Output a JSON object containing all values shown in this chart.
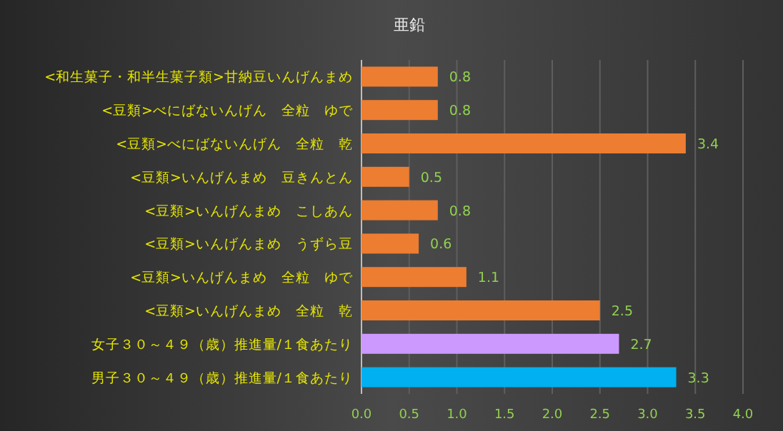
{
  "chart_data": {
    "type": "bar",
    "orientation": "horizontal",
    "title": "亜鉛",
    "categories": [
      "<和生菓子・和半生菓子類>甘納豆いんげんまめ",
      "<豆類>べにばないんげん　全粒　ゆで",
      "<豆類>べにばないんげん　全粒　乾",
      "<豆類>いんげんまめ　豆きんとん",
      "<豆類>いんげんまめ　こしあん",
      "<豆類>いんげんまめ　うずら豆",
      "<豆類>いんげんまめ　全粒　ゆで",
      "<豆類>いんげんまめ　全粒　乾",
      "女子３０～４９（歳）推進量/１食あたり",
      "男子３０～４９（歳）推進量/１食あたり"
    ],
    "values": [
      0.8,
      0.8,
      3.4,
      0.5,
      0.8,
      0.6,
      1.1,
      2.5,
      2.7,
      3.3
    ],
    "colors": [
      "#ed7d31",
      "#ed7d31",
      "#ed7d31",
      "#ed7d31",
      "#ed7d31",
      "#ed7d31",
      "#ed7d31",
      "#ed7d31",
      "#cc99ff",
      "#00b0f0"
    ],
    "data_labels": true,
    "grid": "x",
    "xlim": [
      0,
      4
    ],
    "xticks": [
      {
        "value": 0,
        "label": "0.0"
      },
      {
        "value": 0.5,
        "label": "0.5"
      },
      {
        "value": 1,
        "label": "1.0"
      },
      {
        "value": 1.5,
        "label": "1.5"
      },
      {
        "value": 2,
        "label": "2.0"
      },
      {
        "value": 2.5,
        "label": "2.5"
      },
      {
        "value": 3,
        "label": "3.0"
      },
      {
        "value": 3.5,
        "label": "3.5"
      },
      {
        "value": 4,
        "label": "4.0"
      }
    ]
  }
}
